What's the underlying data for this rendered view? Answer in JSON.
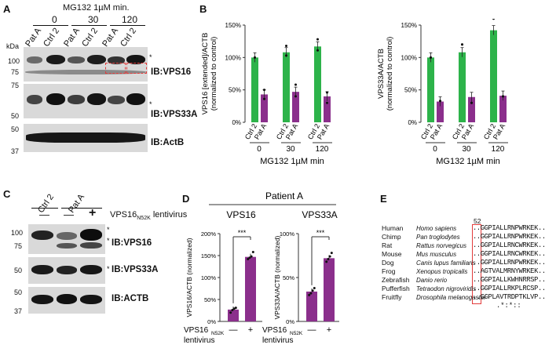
{
  "panels": {
    "A": "A",
    "B": "B",
    "C": "C",
    "D": "D",
    "E": "E"
  },
  "panelA": {
    "treatment": "MG132  1µM min.",
    "timepoints": [
      "0",
      "30",
      "120"
    ],
    "lanes": [
      "Pat A",
      "Ctrl 2",
      "Pat A",
      "Ctrl 2",
      "Pat A",
      "Ctrl 2"
    ],
    "kda": "kDa",
    "blot1_markers": [
      "100",
      "75"
    ],
    "blot2_markers": [
      "75",
      "50"
    ],
    "blot3_markers": [
      "50",
      "37"
    ],
    "blot_labels": [
      "IB:VPS16",
      "IB:VPS33A",
      "IB:ActB"
    ],
    "asterisk": "*"
  },
  "panelC": {
    "groups": [
      "Ctrl 2",
      "Pat A"
    ],
    "signs": [
      "—",
      "—",
      "+"
    ],
    "lentivirus_label": "VPS16",
    "lentivirus_sub": "N52K",
    "lentivirus_tail": " lentivirus",
    "blot1_markers": [
      "100",
      "75"
    ],
    "blot2_markers": [
      "50"
    ],
    "blot3_markers": [
      "50",
      "37"
    ],
    "blot_labels": [
      "IB:VPS16",
      "IB:VPS33A",
      "IB:ACTB"
    ],
    "asterisk": "*"
  },
  "panelE": {
    "position": "52",
    "rows": [
      {
        "common": "Human",
        "latin": "Homo sapiens",
        "seq": "GGPIALLRNPWRKEK"
      },
      {
        "common": "Chimp",
        "latin": "Pan troglodytes",
        "seq": "GGPIALLRNPWRKEK"
      },
      {
        "common": "Rat",
        "latin": "Rattus norvegicus",
        "seq": "GGPIALLRNCWRKEK"
      },
      {
        "common": "Mouse",
        "latin": "Mus musculus",
        "seq": "GGPIALLRNCWRKEK"
      },
      {
        "common": "Dog",
        "latin": "Canis lupus familiaris",
        "seq": "GGPIALLRNPWRKEK"
      },
      {
        "common": "Frog",
        "latin": "Xenopus tropicalis",
        "seq": "AGTVALMRNYWRKEK"
      },
      {
        "common": "Zebrafish",
        "latin": "Danio rerio",
        "seq": "GGPIALLKWHNRRSP"
      },
      {
        "common": "Pufferfish",
        "latin": "Tetraodon nigroviridis",
        "seq": "GGPIALLRKPLRCSP"
      },
      {
        "common": "Fruitfly",
        "latin": "Drosophila melanogaster",
        "seq": "GGPLAVTRDPTKLVP"
      }
    ],
    "prefix": "..",
    "suffix": "..",
    "conservation": ".*:*::"
  },
  "chart_data": [
    {
      "id": "B-left",
      "type": "bar",
      "ylabel": "VPS16 [extended]/ACTB (normalized to control)",
      "ylim": [
        0,
        150
      ],
      "yticks": [
        "0%",
        "50%",
        "100%",
        "150%"
      ],
      "categories": [
        "0",
        "30",
        "120"
      ],
      "bar_labels": [
        "Ctrl 2",
        "Pat A"
      ],
      "xlabel": "MG132  1µM min",
      "series": [
        {
          "name": "Ctrl 2",
          "color": "#2db34a",
          "values": [
            100,
            108,
            117
          ],
          "points": [
            [
              100,
              100
            ],
            [
              103,
              118
            ],
            [
              111,
              128
            ]
          ]
        },
        {
          "name": "Pat A",
          "color": "#8b2f8c",
          "values": [
            43,
            47,
            40
          ],
          "points": [
            [
              36,
              50
            ],
            [
              40,
              58
            ],
            [
              30,
              46
            ]
          ]
        }
      ]
    },
    {
      "id": "B-right",
      "type": "bar",
      "ylabel": "VPS33A/ACTB (normalized to control)",
      "ylim": [
        0,
        150
      ],
      "yticks": [
        "0%",
        "50%",
        "100%",
        "150%"
      ],
      "categories": [
        "0",
        "30",
        "120"
      ],
      "bar_labels": [
        "Ctrl 2",
        "Pat A"
      ],
      "xlabel": "MG132  1µM min",
      "series": [
        {
          "name": "Ctrl 2",
          "color": "#2db34a",
          "values": [
            100,
            108,
            142
          ],
          "points": [
            [
              100,
              100
            ],
            [
              120,
              120
            ],
            [
              160,
              160
            ]
          ]
        },
        {
          "name": "Pat A",
          "color": "#8b2f8c",
          "values": [
            32,
            39,
            41
          ],
          "points": [
            [
              33,
              33
            ],
            [
              30,
              30
            ],
            [
              40,
              40
            ]
          ]
        }
      ]
    },
    {
      "id": "D-left",
      "type": "bar",
      "header": "Patient A",
      "title": "VPS16",
      "ylabel": "VPS16/ACTB (normalized)",
      "ylim": [
        0,
        200
      ],
      "yticks": [
        "0%",
        "50%",
        "100%",
        "150%",
        "200%"
      ],
      "categories": [
        "—",
        "+"
      ],
      "xlabel_main": "VPS16",
      "xlabel_sub": "N52K",
      "xlabel_tail": "lentivirus",
      "significance": "***",
      "color": "#8b2f8c",
      "values": [
        27,
        147
      ],
      "points": [
        [
          20,
          26,
          29,
          31
        ],
        [
          142,
          145,
          148,
          158
        ]
      ]
    },
    {
      "id": "D-right",
      "type": "bar",
      "title": "VPS33A",
      "ylabel": "VPS33A/ACTB (normalized)",
      "ylim": [
        0,
        100
      ],
      "yticks": [
        "0%",
        "50%",
        "100%"
      ],
      "categories": [
        "—",
        "+"
      ],
      "xlabel_main": "VPS16",
      "xlabel_sub": "N52K",
      "xlabel_tail": "lentivirus",
      "significance": "***",
      "color": "#8b2f8c",
      "values": [
        34,
        72
      ],
      "points": [
        [
          30,
          32,
          35,
          38
        ],
        [
          68,
          71,
          74,
          78
        ]
      ]
    }
  ]
}
